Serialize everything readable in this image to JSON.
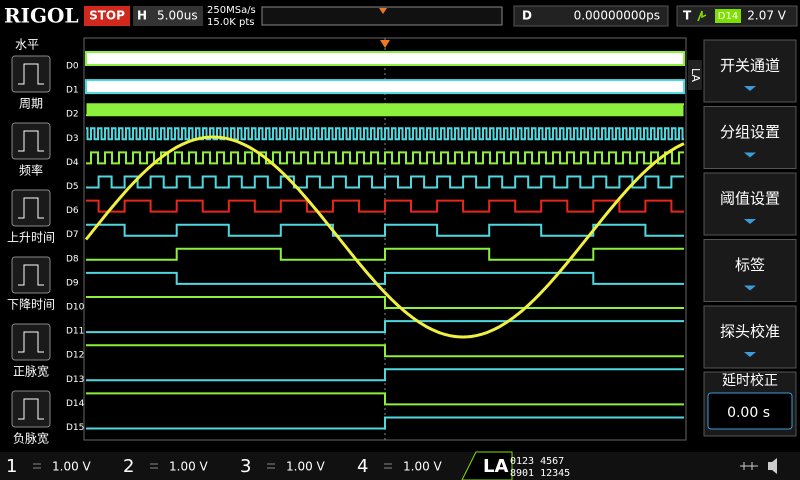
{
  "header": {
    "brand": "RIGOL",
    "status": "STOP",
    "timebase_label": "H",
    "timebase": "5.00us",
    "sample_rate": "250MSa/s",
    "memory_depth": "15.0K pts",
    "delay_label": "D",
    "delay": "0.00000000ps",
    "trigger_label": "T",
    "trigger_source": "D14",
    "trigger_level": "2.07 V"
  },
  "left_menu": {
    "title": "水平",
    "items": [
      "周期",
      "频率",
      "上升时间",
      "下降时间",
      "正脉宽",
      "负脉宽"
    ]
  },
  "channels": [
    "D0",
    "D1",
    "D2",
    "D3",
    "D4",
    "D5",
    "D6",
    "D7",
    "D8",
    "D9",
    "D10",
    "D11",
    "D12",
    "D13",
    "D14",
    "D15"
  ],
  "side_tab": "LA",
  "right_menu": {
    "items": [
      "开关通道",
      "分组设置",
      "阈值设置",
      "标签",
      "探头校准"
    ],
    "delay_cal": {
      "title": "延时校正",
      "value": "0.00 s"
    }
  },
  "footer": {
    "analog": [
      {
        "number": "1",
        "scale": "1.00 V"
      },
      {
        "number": "2",
        "scale": "1.00 V"
      },
      {
        "number": "3",
        "scale": "1.00 V"
      },
      {
        "number": "4",
        "scale": "1.00 V"
      }
    ],
    "la_label": "LA",
    "la_row1": "0123 4567",
    "la_row2": "8901 12345"
  }
}
